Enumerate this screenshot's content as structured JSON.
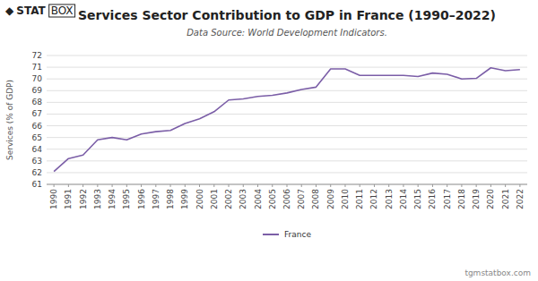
{
  "chart_data": {
    "type": "line",
    "title": "Services Sector Contribution to GDP in France (1990–2022)",
    "subtitle": "Data Source: World Development Indicators.",
    "ylabel": "Services (% of GDP)",
    "annotations": [
      "◆",
      "STAT",
      "BOX",
      "tgmstatbox.com"
    ],
    "x": [
      1990,
      1991,
      1992,
      1993,
      1994,
      1995,
      1996,
      1997,
      1998,
      1999,
      2000,
      2001,
      2002,
      2003,
      2004,
      2005,
      2006,
      2007,
      2008,
      2009,
      2010,
      2011,
      2012,
      2013,
      2014,
      2015,
      2016,
      2017,
      2018,
      2019,
      2020,
      2021,
      2022
    ],
    "series": [
      {
        "name": "France",
        "color": "#7B5EA7",
        "values": [
          62.1,
          63.2,
          63.5,
          64.8,
          65.0,
          64.8,
          65.3,
          65.5,
          65.6,
          66.2,
          66.6,
          67.2,
          68.2,
          68.3,
          68.5,
          68.6,
          68.8,
          69.1,
          69.3,
          70.85,
          70.85,
          70.3,
          70.3,
          70.3,
          70.3,
          70.2,
          70.5,
          70.4,
          70.0,
          70.05,
          70.95,
          70.7,
          70.8
        ]
      }
    ],
    "xlim": [
      1989.5,
      2022.5
    ],
    "xticks": [
      1990,
      1991,
      1992,
      1993,
      1994,
      1995,
      1996,
      1997,
      1998,
      1999,
      2000,
      2001,
      2002,
      2003,
      2004,
      2005,
      2006,
      2007,
      2008,
      2009,
      2010,
      2011,
      2012,
      2013,
      2014,
      2015,
      2016,
      2017,
      2018,
      2019,
      2020,
      2021,
      2022
    ],
    "ylim": [
      61,
      72
    ],
    "yticks": [
      61,
      62,
      63,
      64,
      65,
      66,
      67,
      68,
      69,
      70,
      71,
      72
    ],
    "grid": true,
    "legend": "bottom"
  }
}
